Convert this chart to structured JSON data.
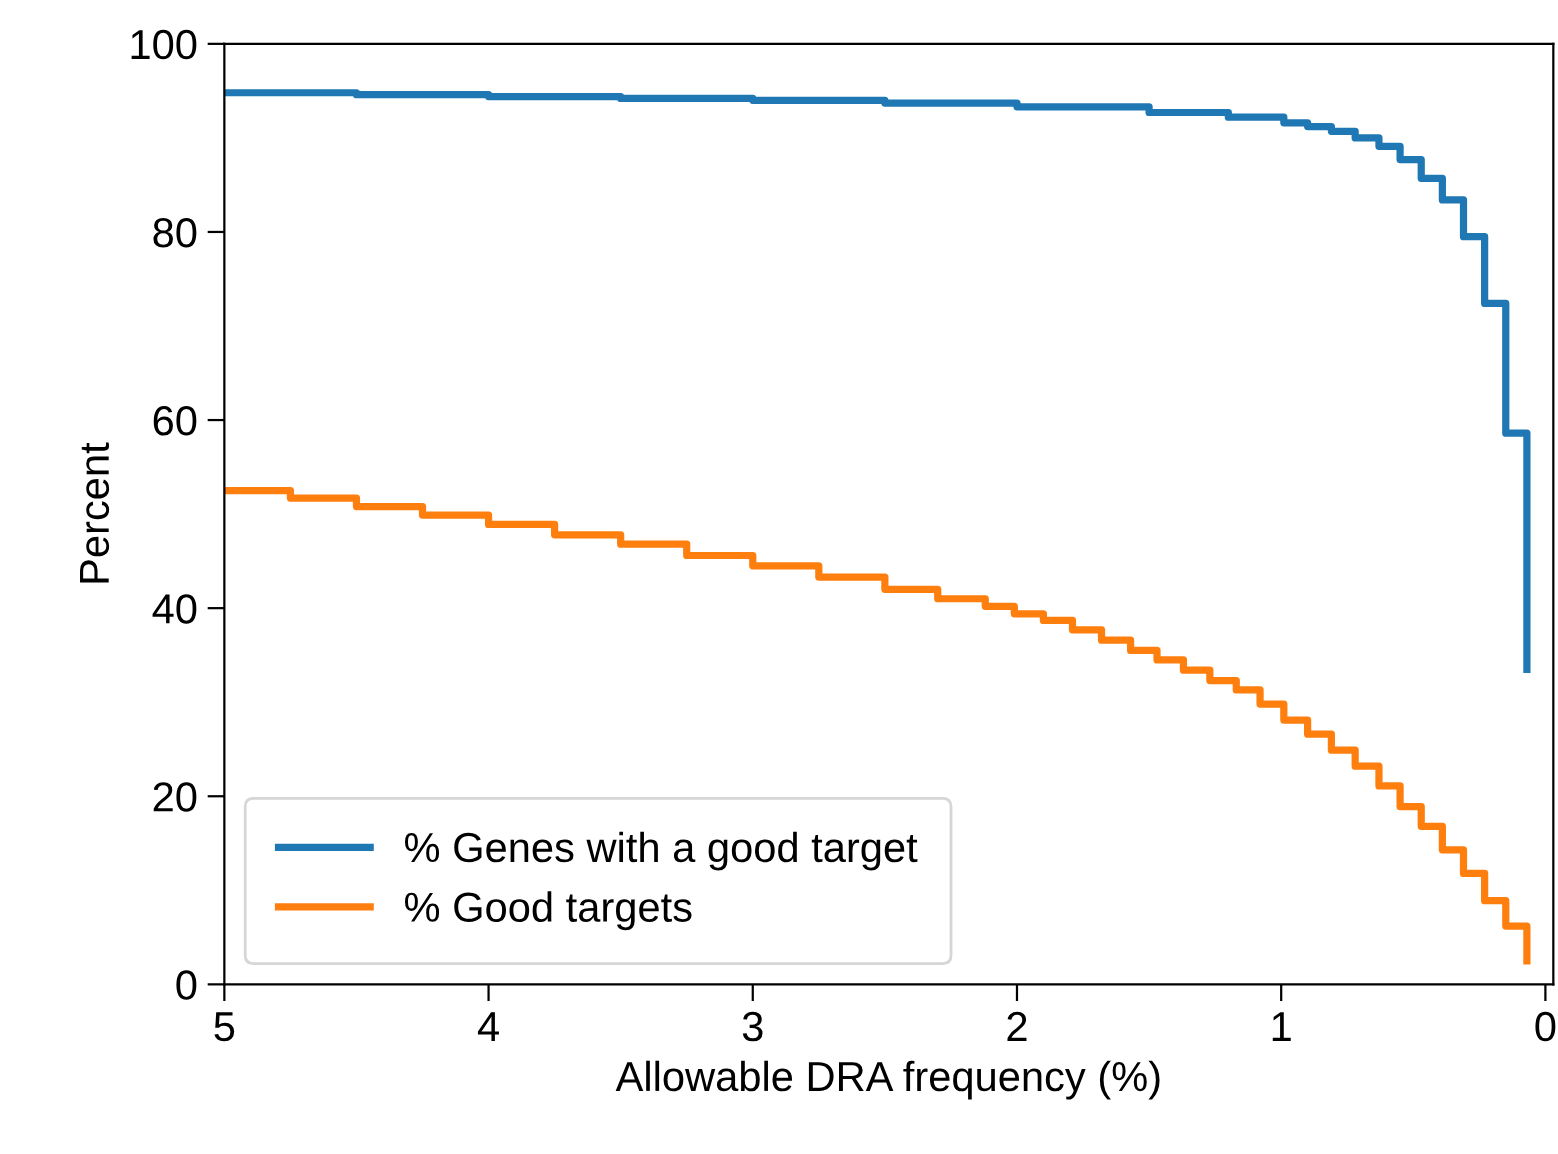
{
  "chart_data": {
    "type": "step",
    "xlabel": "Allowable DRA frequency (%)",
    "ylabel": "Percent",
    "xlim": [
      5,
      -0.03
    ],
    "xticks": [
      5,
      4,
      3,
      2,
      1,
      0
    ],
    "ylim": [
      0,
      100
    ],
    "yticks": [
      0,
      20,
      40,
      60,
      80,
      100
    ],
    "grid": false,
    "legend": "bottom left",
    "series": [
      {
        "name": "% Genes with a good target",
        "color": "#1f77b4",
        "x": [
          5.0,
          4.5,
          4.0,
          3.5,
          3.0,
          2.5,
          2.0,
          1.5,
          1.2,
          0.99,
          0.9,
          0.81,
          0.72,
          0.63,
          0.55,
          0.47,
          0.39,
          0.31,
          0.23,
          0.15,
          0.07
        ],
        "values": [
          94.8,
          94.6,
          94.4,
          94.2,
          94.0,
          93.7,
          93.3,
          92.7,
          92.2,
          91.6,
          91.2,
          90.7,
          90.0,
          89.1,
          87.7,
          85.7,
          83.4,
          79.5,
          72.4,
          58.6,
          33.5
        ]
      },
      {
        "name": "% Good targets",
        "color": "#ff7f0e",
        "x": [
          5.0,
          4.75,
          4.5,
          4.25,
          4.0,
          3.75,
          3.5,
          3.25,
          3.0,
          2.75,
          2.5,
          2.3,
          2.12,
          2.01,
          1.9,
          1.79,
          1.68,
          1.57,
          1.47,
          1.37,
          1.27,
          1.17,
          1.08,
          0.99,
          0.9,
          0.81,
          0.72,
          0.63,
          0.55,
          0.47,
          0.39,
          0.31,
          0.23,
          0.15,
          0.07
        ],
        "values": [
          52.5,
          51.7,
          50.8,
          49.9,
          48.9,
          47.8,
          46.8,
          45.6,
          44.5,
          43.3,
          42.0,
          41.0,
          40.2,
          39.4,
          38.7,
          37.7,
          36.6,
          35.5,
          34.5,
          33.4,
          32.3,
          31.3,
          29.8,
          28.1,
          26.6,
          24.9,
          23.2,
          21.1,
          18.9,
          16.8,
          14.3,
          11.8,
          8.9,
          6.2,
          2.5
        ]
      }
    ]
  }
}
